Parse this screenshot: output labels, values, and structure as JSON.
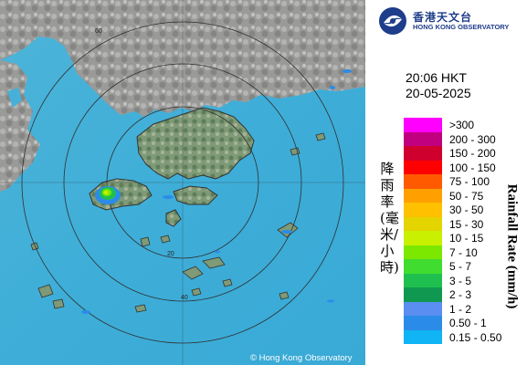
{
  "organization": {
    "name_cn": "香港天文台",
    "name_en": "HONG KONG OBSERVATORY"
  },
  "timestamp": {
    "time": "20:06 HKT",
    "date": "20-05-2025"
  },
  "legend": {
    "title_cn": "降雨率(毫米/小時)",
    "title_en": "Rainfall Rate (mm/h)",
    "items": [
      {
        "label": ">300",
        "color": "#ff00ff"
      },
      {
        "label": "200 - 300",
        "color": "#c0007f"
      },
      {
        "label": "150 - 200",
        "color": "#d0002e"
      },
      {
        "label": "100 - 150",
        "color": "#ff0000"
      },
      {
        "label": "75 - 100",
        "color": "#ff5a00"
      },
      {
        "label": "50 - 75",
        "color": "#ffa000"
      },
      {
        "label": "30 - 50",
        "color": "#ffc000"
      },
      {
        "label": "15 - 30",
        "color": "#e4d400"
      },
      {
        "label": "10 - 15",
        "color": "#c8f000"
      },
      {
        "label": "7 - 10",
        "color": "#7ce800"
      },
      {
        "label": "5 - 7",
        "color": "#40dc30"
      },
      {
        "label": "3 - 5",
        "color": "#20c050"
      },
      {
        "label": "2 - 3",
        "color": "#109850"
      },
      {
        "label": "1 - 2",
        "color": "#5a8ef0"
      },
      {
        "label": "0.50 - 1",
        "color": "#2a8ce8"
      },
      {
        "label": "0.15 - 0.50",
        "color": "#10b4f4"
      }
    ]
  },
  "map": {
    "ring_labels": [
      "20",
      "40",
      "60"
    ],
    "copyright": "© Hong Kong Observatory"
  }
}
